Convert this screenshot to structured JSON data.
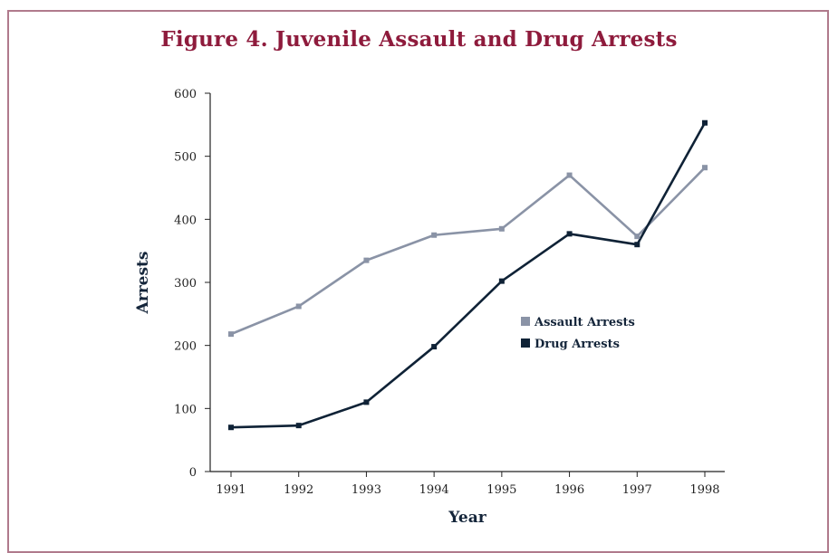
{
  "chart_data": {
    "type": "line",
    "title": "Figure 4. Juvenile Assault and Drug Arrests",
    "xlabel": "Year",
    "ylabel": "Arrests",
    "categories": [
      "1991",
      "1992",
      "1993",
      "1994",
      "1995",
      "1996",
      "1997",
      "1998"
    ],
    "y_ticks": [
      "0",
      "100",
      "200",
      "300",
      "400",
      "500",
      "600"
    ],
    "ylim": [
      0,
      600
    ],
    "grid": false,
    "legend_position": "center-right",
    "series": [
      {
        "name": "Assault Arrests",
        "color": "#8a93a6",
        "values": [
          218,
          262,
          335,
          375,
          385,
          470,
          373,
          482
        ]
      },
      {
        "name": "Drug Arrests",
        "color": "#0f2236",
        "values": [
          70,
          73,
          110,
          198,
          302,
          377,
          360,
          553
        ]
      }
    ]
  }
}
